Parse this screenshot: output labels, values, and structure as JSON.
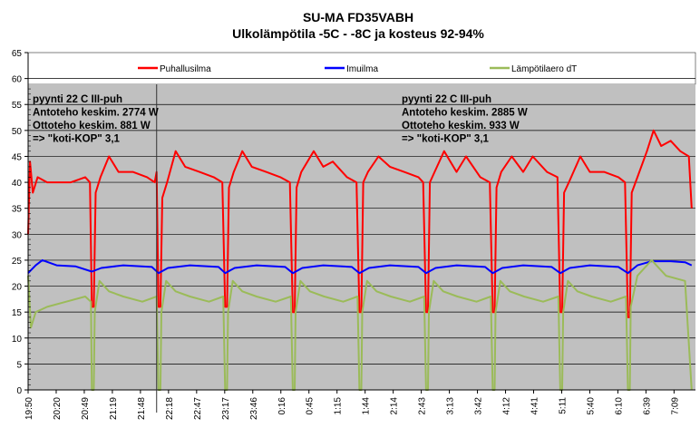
{
  "chart_data": {
    "type": "line",
    "title": "SU-MA FD35VABH",
    "subtitle": "Ulkolämpötila -5C - -8C ja kosteus 92-94%",
    "xlabel": "",
    "ylabel": "",
    "ylim": [
      0,
      65
    ],
    "yticks": [
      0,
      5,
      10,
      15,
      20,
      25,
      30,
      35,
      40,
      45,
      50,
      55,
      60,
      65
    ],
    "x_unit": "minutes since 19:50",
    "xlim": [
      0,
      701
    ],
    "xtick_labels": [
      "19:50",
      "20:20",
      "20:49",
      "21:19",
      "21:48",
      "22:18",
      "22:47",
      "23:17",
      "23:46",
      "0:16",
      "0:45",
      "1:15",
      "1:44",
      "2:14",
      "2:43",
      "3:13",
      "3:42",
      "4:12",
      "4:41",
      "5:11",
      "5:40",
      "6:10",
      "6:39",
      "7:09"
    ],
    "xtick_step_min": 29.5,
    "grid": true,
    "legend_position": "top",
    "divider_time_min": 135,
    "annotations": [
      {
        "lines": [
          "pyynti 22 C III-puh",
          "Antoteho keskim. 2774 W",
          "Ottoteho keskim. 881 W",
          "=> \"koti-KOP\" 3,1"
        ],
        "position": "top-left"
      },
      {
        "lines": [
          "pyynti 22 C III-puh",
          "Antoteho keskim. 2885 W",
          "Ottoteho keskim. 933 W",
          "=> \"koti-KOP\" 3,1"
        ],
        "position": "top-center"
      }
    ],
    "series": [
      {
        "name": "Puhallusilma",
        "color": "#ff0000",
        "points": [
          [
            0,
            30
          ],
          [
            2,
            44
          ],
          [
            5,
            38
          ],
          [
            10,
            41
          ],
          [
            20,
            40
          ],
          [
            30,
            40
          ],
          [
            45,
            40
          ],
          [
            60,
            41
          ],
          [
            65,
            40
          ],
          [
            67,
            16
          ],
          [
            69,
            16
          ],
          [
            71,
            38
          ],
          [
            76,
            41
          ],
          [
            85,
            45
          ],
          [
            95,
            42
          ],
          [
            110,
            42
          ],
          [
            125,
            41
          ],
          [
            133,
            40
          ],
          [
            135,
            42
          ],
          [
            137,
            16
          ],
          [
            139,
            16
          ],
          [
            141,
            37
          ],
          [
            146,
            40
          ],
          [
            155,
            46
          ],
          [
            165,
            43
          ],
          [
            180,
            42
          ],
          [
            195,
            41
          ],
          [
            204,
            40
          ],
          [
            207,
            16
          ],
          [
            209,
            16
          ],
          [
            211,
            39
          ],
          [
            216,
            42
          ],
          [
            225,
            46
          ],
          [
            235,
            43
          ],
          [
            250,
            42
          ],
          [
            265,
            41
          ],
          [
            275,
            40
          ],
          [
            278,
            15
          ],
          [
            280,
            15
          ],
          [
            282,
            39
          ],
          [
            287,
            42
          ],
          [
            300,
            46
          ],
          [
            310,
            43
          ],
          [
            320,
            44
          ],
          [
            335,
            41
          ],
          [
            345,
            40
          ],
          [
            348,
            15
          ],
          [
            350,
            15
          ],
          [
            352,
            40
          ],
          [
            357,
            42
          ],
          [
            368,
            45
          ],
          [
            380,
            43
          ],
          [
            395,
            42
          ],
          [
            410,
            41
          ],
          [
            415,
            40
          ],
          [
            418,
            15
          ],
          [
            420,
            15
          ],
          [
            422,
            40
          ],
          [
            427,
            42
          ],
          [
            437,
            46
          ],
          [
            450,
            42
          ],
          [
            460,
            45
          ],
          [
            475,
            41
          ],
          [
            485,
            40
          ],
          [
            488,
            15
          ],
          [
            490,
            15
          ],
          [
            492,
            39
          ],
          [
            497,
            42
          ],
          [
            508,
            45
          ],
          [
            520,
            42
          ],
          [
            530,
            45
          ],
          [
            545,
            42
          ],
          [
            556,
            41
          ],
          [
            559,
            15
          ],
          [
            561,
            15
          ],
          [
            563,
            38
          ],
          [
            568,
            40
          ],
          [
            580,
            45
          ],
          [
            590,
            42
          ],
          [
            605,
            42
          ],
          [
            620,
            41
          ],
          [
            627,
            40
          ],
          [
            630,
            14
          ],
          [
            632,
            14
          ],
          [
            634,
            38
          ],
          [
            640,
            41
          ],
          [
            650,
            46
          ],
          [
            657,
            50
          ],
          [
            665,
            47
          ],
          [
            675,
            48
          ],
          [
            685,
            46
          ],
          [
            694,
            45
          ],
          [
            697,
            35
          ]
        ]
      },
      {
        "name": "Imuilma",
        "color": "#0000ff",
        "points": [
          [
            0,
            22.5
          ],
          [
            8,
            24
          ],
          [
            15,
            25
          ],
          [
            30,
            24
          ],
          [
            50,
            23.8
          ],
          [
            67,
            22.8
          ],
          [
            77,
            23.5
          ],
          [
            100,
            24
          ],
          [
            130,
            23.7
          ],
          [
            137,
            22.5
          ],
          [
            147,
            23.5
          ],
          [
            170,
            24
          ],
          [
            200,
            23.7
          ],
          [
            207,
            22.5
          ],
          [
            217,
            23.5
          ],
          [
            240,
            24
          ],
          [
            270,
            23.7
          ],
          [
            278,
            22.5
          ],
          [
            288,
            23.5
          ],
          [
            310,
            24
          ],
          [
            340,
            23.7
          ],
          [
            348,
            22.5
          ],
          [
            358,
            23.5
          ],
          [
            380,
            24
          ],
          [
            410,
            23.7
          ],
          [
            418,
            22.5
          ],
          [
            428,
            23.5
          ],
          [
            450,
            24
          ],
          [
            480,
            23.7
          ],
          [
            488,
            22.5
          ],
          [
            498,
            23.5
          ],
          [
            520,
            24
          ],
          [
            550,
            23.7
          ],
          [
            559,
            22.5
          ],
          [
            569,
            23.5
          ],
          [
            590,
            24
          ],
          [
            620,
            23.7
          ],
          [
            630,
            22.5
          ],
          [
            640,
            24
          ],
          [
            655,
            24.8
          ],
          [
            675,
            24.8
          ],
          [
            690,
            24.6
          ],
          [
            697,
            24
          ]
        ]
      },
      {
        "name": "Lämpötilaero dT",
        "color": "#9bbb59",
        "points": [
          [
            0,
            22
          ],
          [
            3,
            12
          ],
          [
            8,
            15
          ],
          [
            20,
            16
          ],
          [
            40,
            17
          ],
          [
            60,
            18
          ],
          [
            66,
            17
          ],
          [
            67,
            0
          ],
          [
            69,
            0
          ],
          [
            70,
            15
          ],
          [
            75,
            21
          ],
          [
            85,
            19
          ],
          [
            100,
            18
          ],
          [
            120,
            17
          ],
          [
            135,
            18
          ],
          [
            137,
            0
          ],
          [
            139,
            0
          ],
          [
            140,
            15
          ],
          [
            145,
            21
          ],
          [
            155,
            19
          ],
          [
            170,
            18
          ],
          [
            190,
            17
          ],
          [
            205,
            18
          ],
          [
            207,
            0
          ],
          [
            209,
            0
          ],
          [
            210,
            15
          ],
          [
            215,
            21
          ],
          [
            225,
            19
          ],
          [
            240,
            18
          ],
          [
            260,
            17
          ],
          [
            276,
            18
          ],
          [
            278,
            0
          ],
          [
            280,
            0
          ],
          [
            281,
            15
          ],
          [
            286,
            21
          ],
          [
            296,
            19
          ],
          [
            311,
            18
          ],
          [
            331,
            17
          ],
          [
            346,
            18
          ],
          [
            348,
            0
          ],
          [
            350,
            0
          ],
          [
            351,
            15
          ],
          [
            356,
            21
          ],
          [
            366,
            19
          ],
          [
            381,
            18
          ],
          [
            401,
            17
          ],
          [
            416,
            18
          ],
          [
            418,
            0
          ],
          [
            420,
            0
          ],
          [
            421,
            15
          ],
          [
            426,
            21
          ],
          [
            436,
            19
          ],
          [
            451,
            18
          ],
          [
            471,
            17
          ],
          [
            486,
            18
          ],
          [
            488,
            0
          ],
          [
            490,
            0
          ],
          [
            491,
            15
          ],
          [
            496,
            21
          ],
          [
            506,
            19
          ],
          [
            521,
            18
          ],
          [
            541,
            17
          ],
          [
            557,
            18
          ],
          [
            559,
            0
          ],
          [
            561,
            0
          ],
          [
            562,
            15
          ],
          [
            567,
            21
          ],
          [
            577,
            19
          ],
          [
            592,
            18
          ],
          [
            612,
            17
          ],
          [
            628,
            18
          ],
          [
            630,
            0
          ],
          [
            632,
            0
          ],
          [
            633,
            16
          ],
          [
            640,
            22
          ],
          [
            655,
            25
          ],
          [
            670,
            22
          ],
          [
            690,
            21
          ],
          [
            697,
            0
          ]
        ]
      }
    ]
  }
}
